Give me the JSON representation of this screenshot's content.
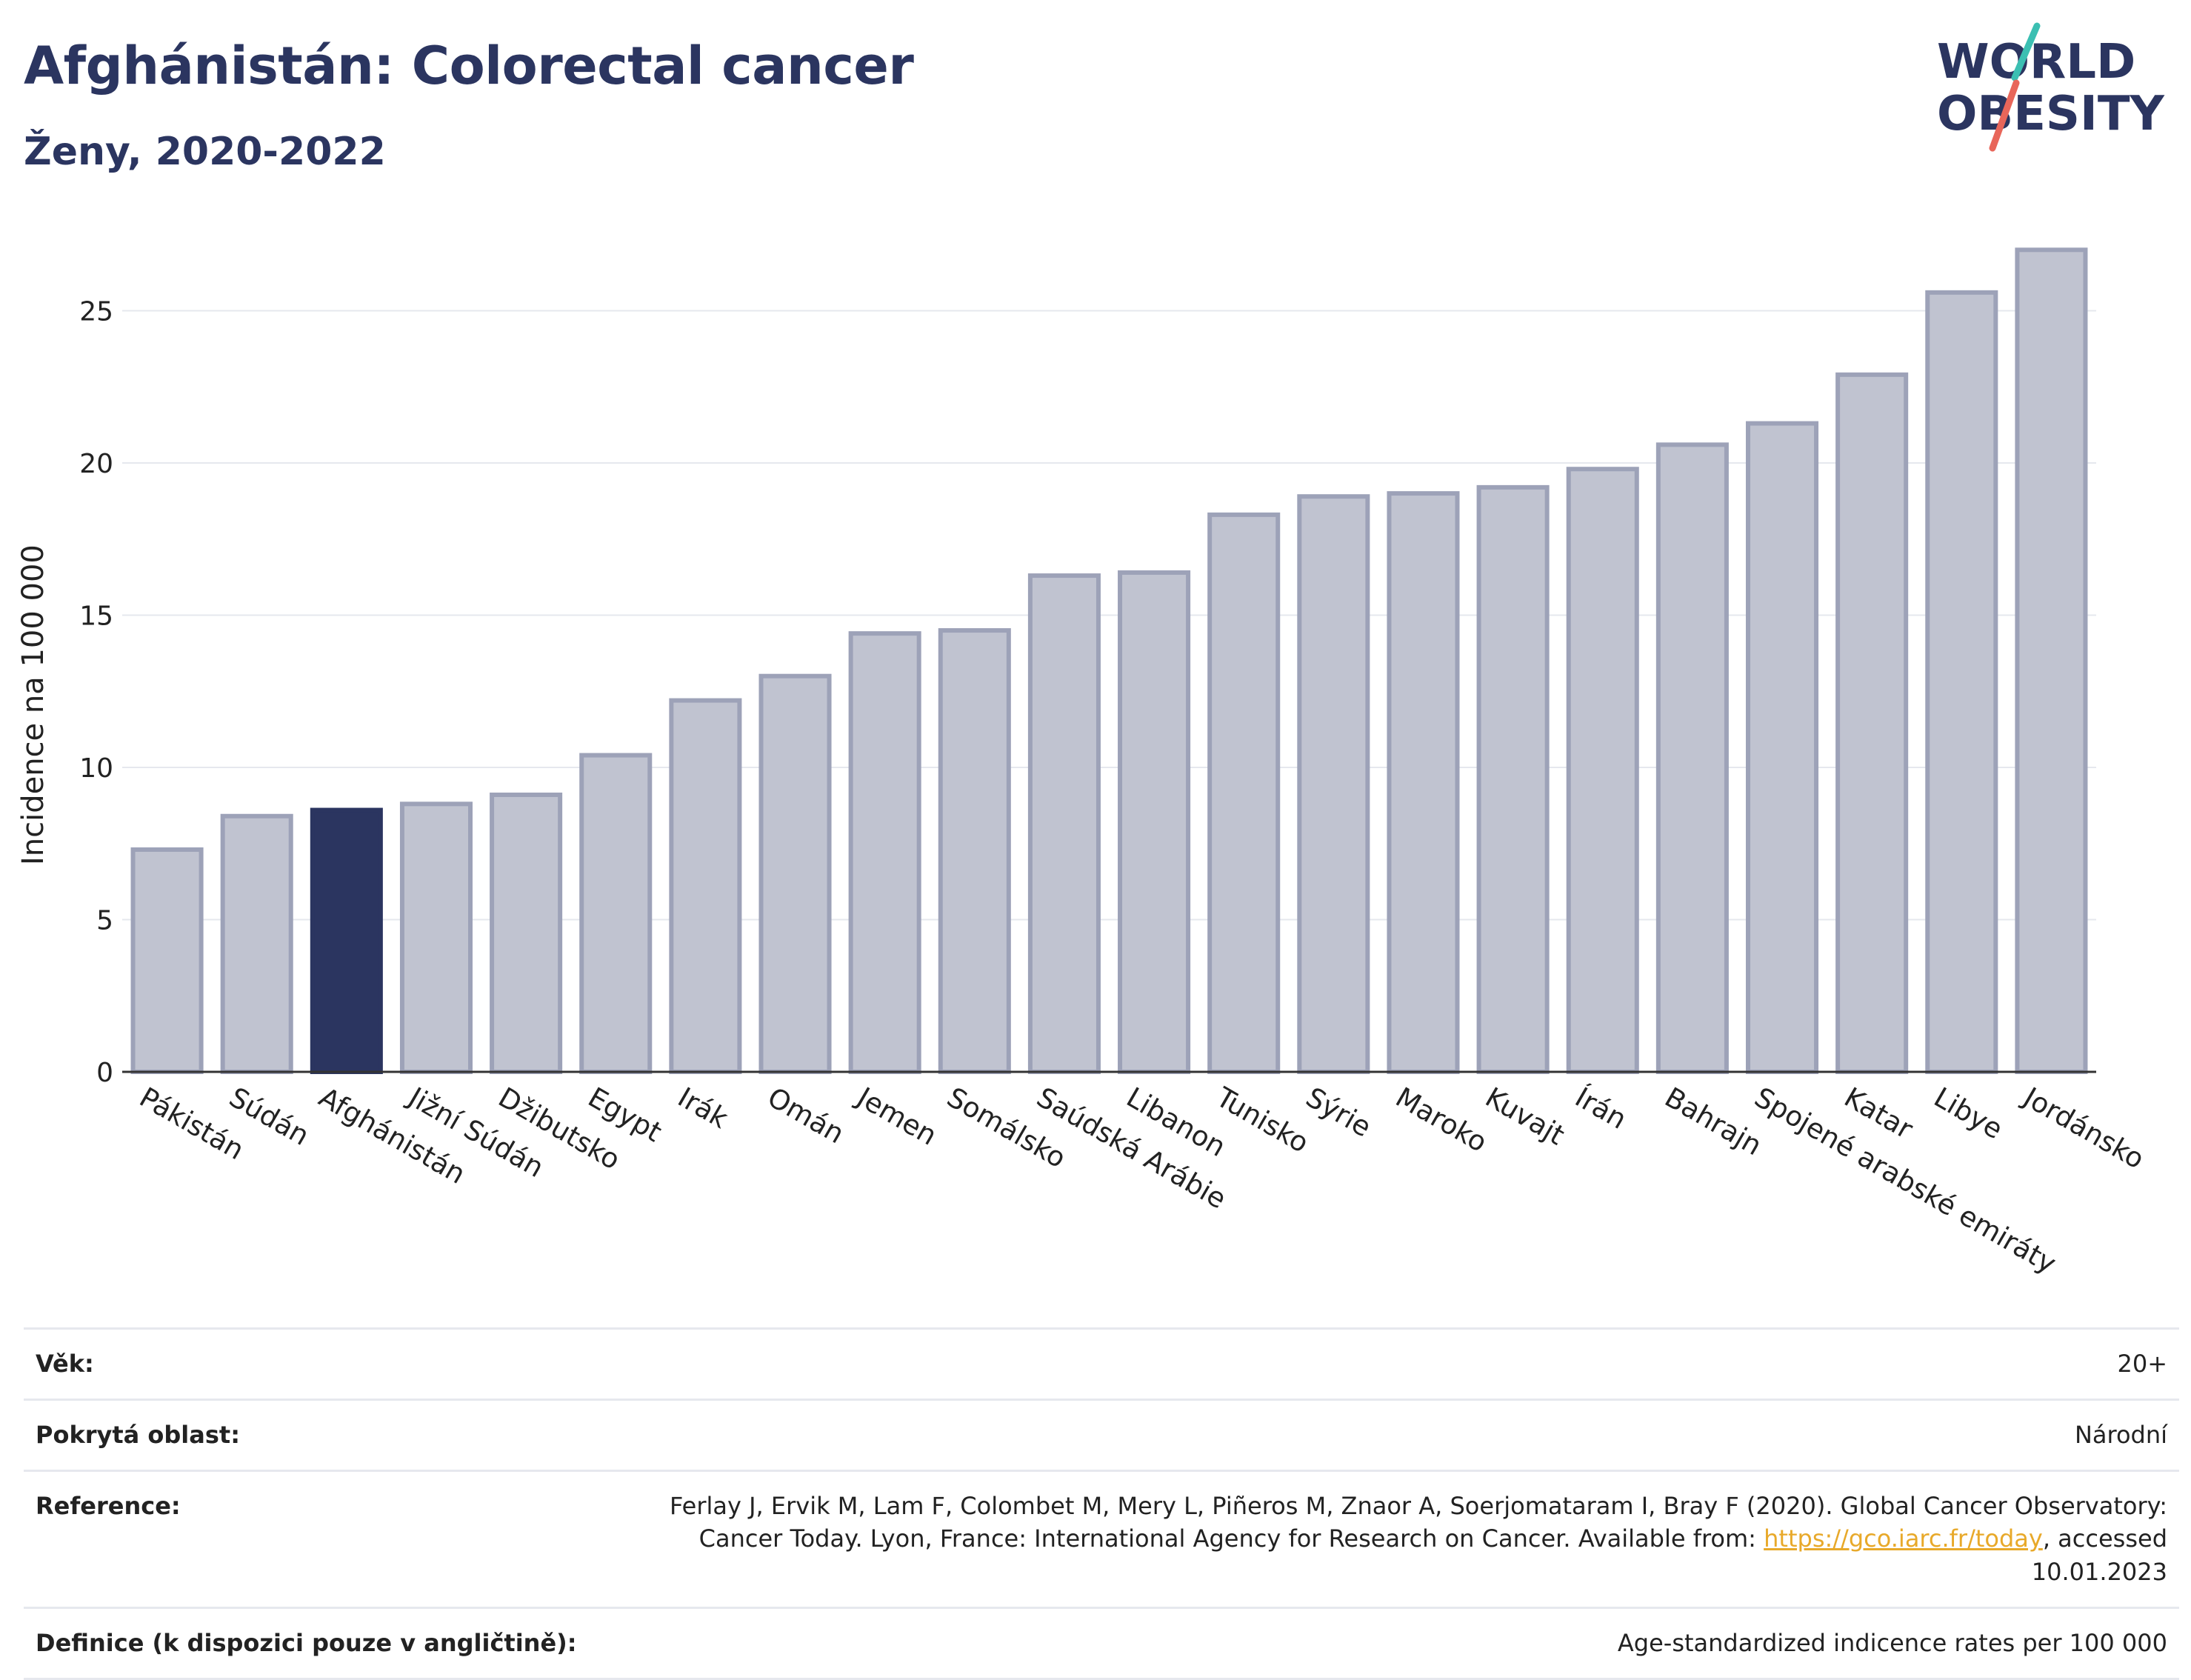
{
  "header": {
    "title": "Afghánistán: Colorectal cancer",
    "subtitle": "Ženy, 2020-2022"
  },
  "logo": {
    "line1": "WORLD",
    "line2": "OBESITY",
    "colors": {
      "text": "#2b3560",
      "slash_top": "#3bbfb2",
      "slash_bottom": "#e8665a"
    }
  },
  "chart_data": {
    "type": "bar",
    "ylabel": "Incidence na 100 000",
    "xlabel": "",
    "ylim": [
      0,
      28
    ],
    "yticks": [
      0,
      5,
      10,
      15,
      20,
      25
    ],
    "grid": true,
    "highlight": "Afghánistán",
    "colors": {
      "bar": "#c0c3d0",
      "bar_border": "#9da2b8",
      "highlight": "#2b3560",
      "grid": "#e6e8ee"
    },
    "categories": [
      "Pákistán",
      "Súdán",
      "Afghánistán",
      "Jižní Súdán",
      "Džibutsko",
      "Egypt",
      "Irák",
      "Omán",
      "Jemen",
      "Somálsko",
      "Saúdská Arábie",
      "Libanon",
      "Tunisko",
      "Sýrie",
      "Maroko",
      "Kuvajt",
      "Írán",
      "Bahrajn",
      "Spojené arabské emiráty",
      "Katar",
      "Libye",
      "Jordánsko"
    ],
    "values": [
      7.3,
      8.4,
      8.6,
      8.8,
      9.1,
      10.4,
      12.2,
      13.0,
      14.4,
      14.5,
      16.3,
      16.4,
      18.3,
      18.9,
      19.0,
      19.2,
      19.8,
      20.6,
      21.3,
      22.9,
      25.6,
      27.0
    ]
  },
  "info": {
    "rows": [
      {
        "label": "Věk:",
        "value": "20+"
      },
      {
        "label": "Pokrytá oblast:",
        "value": "Národní"
      },
      {
        "label": "Reference:",
        "value": "Ferlay J, Ervik M, Lam F, Colombet M, Mery L, Piñeros M, Znaor A, Soerjomataram I, Bray F (2020). Global Cancer Observatory: Cancer Today. Lyon, France: International Agency for Research on Cancer. Available from:",
        "link": "https://gco.iarc.fr/today",
        "suffix": ", accessed 10.01.2023"
      },
      {
        "label": "Definice (k dispozici pouze v angličtině):",
        "value": "Age-standardized indicence rates per 100 000"
      }
    ]
  }
}
